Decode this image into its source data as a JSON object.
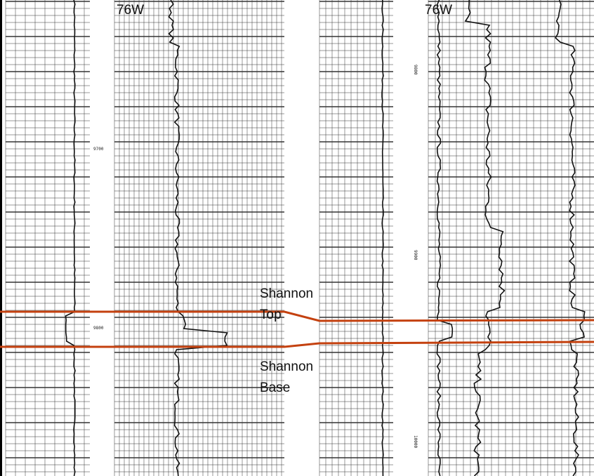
{
  "logs": [
    {
      "label": "76W",
      "depth_labels": [
        "9700",
        "9800"
      ]
    },
    {
      "label": "76W",
      "depth_labels": [
        "9800",
        "9900",
        "10000"
      ]
    }
  ],
  "markers": [
    {
      "label": "Shannon Top"
    },
    {
      "label": "Shannon Base"
    }
  ]
}
